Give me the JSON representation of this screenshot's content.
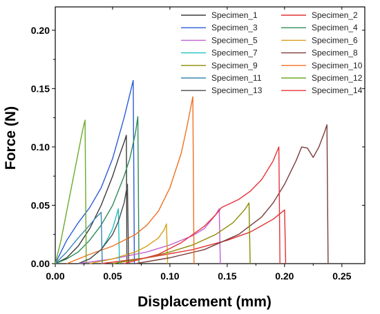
{
  "chart_data": {
    "type": "line",
    "xlabel": "Displacement (mm)",
    "ylabel": "Force (N)",
    "xlim": [
      0,
      0.27
    ],
    "ylim": [
      0,
      0.22
    ],
    "x_ticks": [
      "0.00",
      "0.05",
      "0.10",
      "0.15",
      "0.20",
      "0.25"
    ],
    "y_ticks": [
      "0.00",
      "0.05",
      "0.10",
      "0.15",
      "0.20"
    ],
    "grid": false,
    "legend_position": "top-right",
    "series": [
      {
        "name": "Specimen_1",
        "color": "#3a3a3a",
        "x": [
          0.0,
          0.01,
          0.02,
          0.03,
          0.04,
          0.05,
          0.055,
          0.06,
          0.062,
          0.0625
        ],
        "y": [
          0.0,
          0.005,
          0.015,
          0.03,
          0.05,
          0.075,
          0.09,
          0.104,
          0.11,
          0.0
        ]
      },
      {
        "name": "Specimen_2",
        "color": "#e03030",
        "x": [
          0.04,
          0.08,
          0.12,
          0.15,
          0.17,
          0.19,
          0.2,
          0.201
        ],
        "y": [
          0.0,
          0.005,
          0.012,
          0.02,
          0.027,
          0.038,
          0.046,
          0.0
        ]
      },
      {
        "name": "Specimen_3",
        "color": "#2a5bd7",
        "x": [
          0.0,
          0.005,
          0.01,
          0.02,
          0.03,
          0.04,
          0.05,
          0.06,
          0.065,
          0.068,
          0.069
        ],
        "y": [
          0.0,
          0.01,
          0.02,
          0.035,
          0.048,
          0.065,
          0.09,
          0.125,
          0.145,
          0.157,
          0.0
        ]
      },
      {
        "name": "Specimen_4",
        "color": "#2e8b57",
        "x": [
          0.0,
          0.01,
          0.02,
          0.03,
          0.04,
          0.05,
          0.06,
          0.065,
          0.07,
          0.072,
          0.073
        ],
        "y": [
          0.0,
          0.004,
          0.01,
          0.02,
          0.033,
          0.05,
          0.075,
          0.09,
          0.112,
          0.126,
          0.0
        ]
      },
      {
        "name": "Specimen_5",
        "color": "#c060d0",
        "x": [
          0.02,
          0.05,
          0.08,
          0.1,
          0.12,
          0.13,
          0.14,
          0.143,
          0.144
        ],
        "y": [
          0.0,
          0.004,
          0.01,
          0.016,
          0.024,
          0.03,
          0.042,
          0.047,
          0.0
        ]
      },
      {
        "name": "Specimen_6",
        "color": "#d4a017",
        "x": [
          0.03,
          0.05,
          0.07,
          0.08,
          0.09,
          0.095,
          0.097,
          0.098
        ],
        "y": [
          0.0,
          0.004,
          0.01,
          0.015,
          0.022,
          0.029,
          0.034,
          0.0
        ]
      },
      {
        "name": "Specimen_7",
        "color": "#20c0c0",
        "x": [
          0.02,
          0.03,
          0.04,
          0.045,
          0.05,
          0.053,
          0.055,
          0.056
        ],
        "y": [
          0.0,
          0.004,
          0.012,
          0.02,
          0.03,
          0.04,
          0.047,
          0.0
        ]
      },
      {
        "name": "Specimen_8",
        "color": "#7a3b3b",
        "x": [
          0.07,
          0.1,
          0.13,
          0.16,
          0.18,
          0.19,
          0.2,
          0.21,
          0.215,
          0.22,
          0.225,
          0.23,
          0.235,
          0.237,
          0.238
        ],
        "y": [
          0.0,
          0.005,
          0.012,
          0.025,
          0.04,
          0.052,
          0.068,
          0.088,
          0.1,
          0.099,
          0.091,
          0.1,
          0.113,
          0.119,
          0.0
        ]
      },
      {
        "name": "Specimen_9",
        "color": "#8b8b00",
        "x": [
          0.05,
          0.08,
          0.1,
          0.12,
          0.14,
          0.155,
          0.165,
          0.169,
          0.17
        ],
        "y": [
          0.0,
          0.005,
          0.01,
          0.016,
          0.025,
          0.035,
          0.046,
          0.052,
          0.0
        ]
      },
      {
        "name": "Specimen_10",
        "color": "#f07020",
        "x": [
          0.01,
          0.03,
          0.05,
          0.07,
          0.08,
          0.09,
          0.1,
          0.11,
          0.115,
          0.12,
          0.121
        ],
        "y": [
          0.0,
          0.008,
          0.015,
          0.025,
          0.033,
          0.045,
          0.065,
          0.095,
          0.118,
          0.143,
          0.0
        ]
      },
      {
        "name": "Specimen_11",
        "color": "#3a86b0",
        "x": [
          0.0,
          0.01,
          0.02,
          0.03,
          0.035,
          0.04,
          0.041
        ],
        "y": [
          0.0,
          0.01,
          0.022,
          0.033,
          0.039,
          0.044,
          0.0
        ]
      },
      {
        "name": "Specimen_12",
        "color": "#6aaa2a",
        "x": [
          0.0,
          0.005,
          0.01,
          0.015,
          0.02,
          0.024,
          0.026,
          0.027
        ],
        "y": [
          0.0,
          0.02,
          0.045,
          0.07,
          0.095,
          0.115,
          0.123,
          0.0
        ]
      },
      {
        "name": "Specimen_13",
        "color": "#4a4a4a",
        "x": [
          0.02,
          0.03,
          0.04,
          0.05,
          0.055,
          0.06,
          0.063,
          0.064
        ],
        "y": [
          0.0,
          0.004,
          0.012,
          0.025,
          0.036,
          0.052,
          0.068,
          0.0
        ]
      },
      {
        "name": "Specimen_14",
        "color": "#e8323c",
        "x": [
          0.06,
          0.09,
          0.11,
          0.13,
          0.14,
          0.145,
          0.16,
          0.17,
          0.18,
          0.19,
          0.195,
          0.196
        ],
        "y": [
          0.0,
          0.008,
          0.018,
          0.032,
          0.042,
          0.048,
          0.055,
          0.062,
          0.072,
          0.088,
          0.1,
          0.0
        ]
      }
    ]
  }
}
